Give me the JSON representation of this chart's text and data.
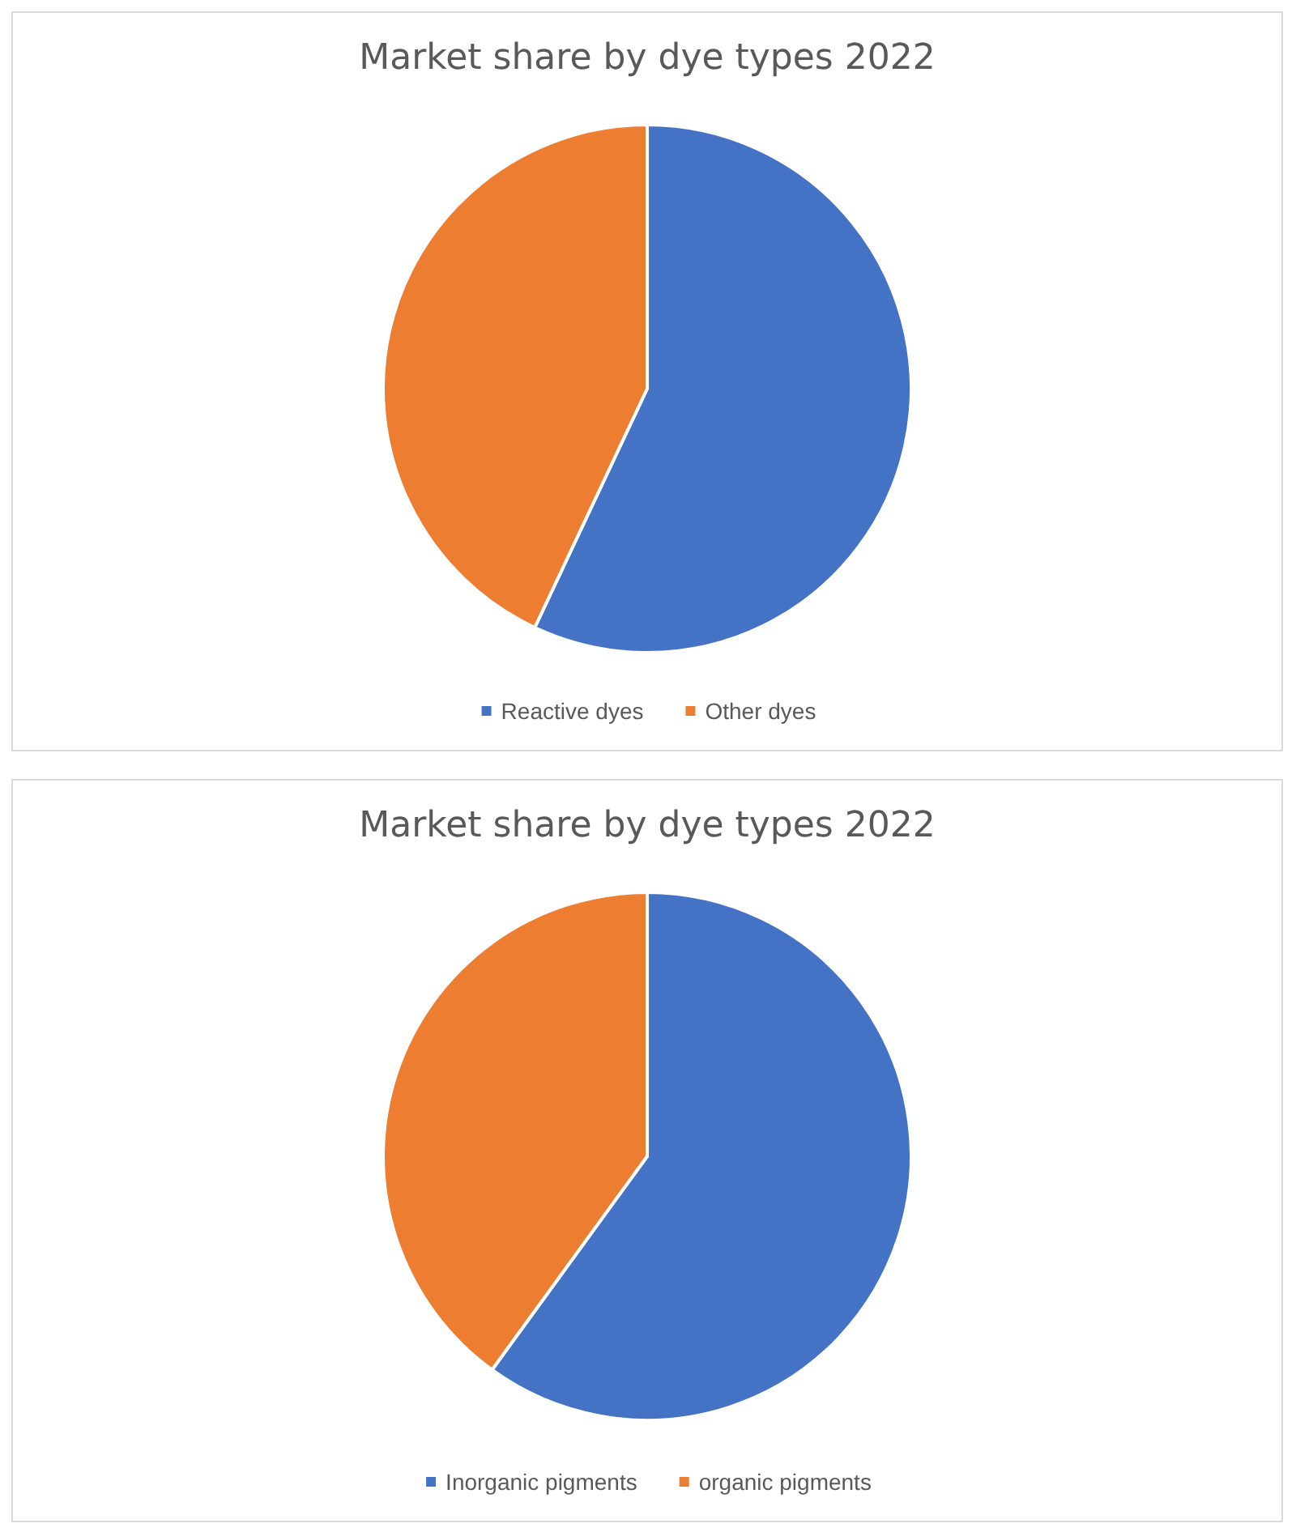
{
  "chart_data": [
    {
      "type": "pie",
      "title": "Market share by dye types 2022",
      "categories": [
        "Reactive dyes",
        "Other dyes"
      ],
      "values": [
        57,
        43
      ],
      "colors": [
        "#4472c4",
        "#ed7d31"
      ],
      "legend": "bottom"
    },
    {
      "type": "pie",
      "title": "Market share by dye types 2022",
      "categories": [
        "Inorganic pigments",
        "organic pigments"
      ],
      "values": [
        60,
        40
      ],
      "colors": [
        "#4472c4",
        "#ed7d31"
      ],
      "legend": "bottom"
    }
  ]
}
